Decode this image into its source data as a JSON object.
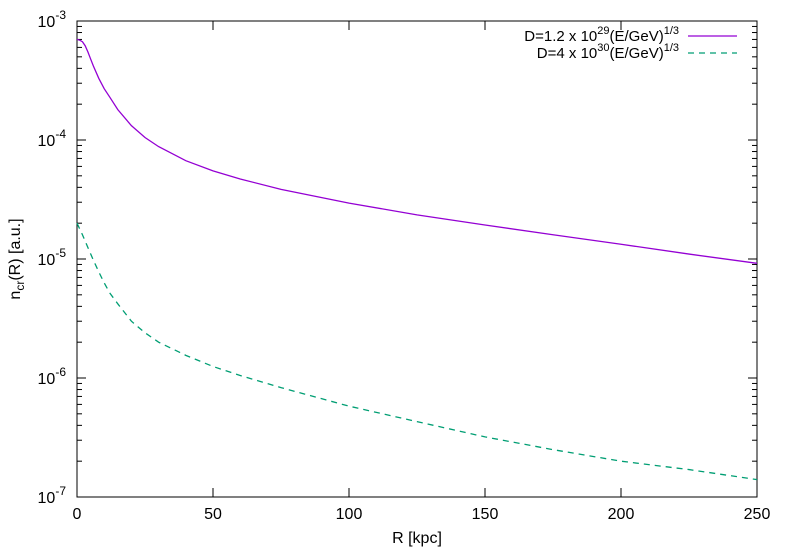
{
  "chart_data": {
    "type": "line",
    "xlabel": "R [kpc]",
    "ylabel": {
      "base": "n",
      "sub": "cr",
      "rest": "(R) [a.u.]"
    },
    "xlim": [
      0,
      250
    ],
    "ylim": [
      1e-07,
      0.001
    ],
    "yscale": "log",
    "grid": false,
    "legend_position": "top-right",
    "x_ticks": [
      0,
      50,
      100,
      150,
      200,
      250
    ],
    "x_tick_labels": [
      "0",
      "50",
      "100",
      "150",
      "200",
      "250"
    ],
    "y_ticks": [
      {
        "value": 1e-07,
        "base": "10",
        "exp": "-7"
      },
      {
        "value": 1e-06,
        "base": "10",
        "exp": "-6"
      },
      {
        "value": 1e-05,
        "base": "10",
        "exp": "-5"
      },
      {
        "value": 0.0001,
        "base": "10",
        "exp": "-4"
      },
      {
        "value": 0.001,
        "base": "10",
        "exp": "-3"
      }
    ],
    "series": [
      {
        "legend": {
          "pre": "D=1.2 x 10",
          "exp1": "29",
          "mid": "(E/GeV)",
          "exp2": "1/3"
        },
        "color": "#9400d3",
        "dash": "solid",
        "x": [
          0,
          1,
          2,
          3,
          4,
          5,
          6,
          8,
          10,
          12,
          15,
          20,
          25,
          30,
          40,
          50,
          60,
          75,
          100,
          125,
          150,
          175,
          200,
          225,
          250
        ],
        "y": [
          0.0007,
          0.00069,
          0.00067,
          0.00062,
          0.00055,
          0.00048,
          0.00042,
          0.00033,
          0.00027,
          0.00023,
          0.00018,
          0.000132,
          0.000105,
          8.8e-05,
          6.7e-05,
          5.5e-05,
          4.7e-05,
          3.85e-05,
          2.95e-05,
          2.35e-05,
          1.93e-05,
          1.6e-05,
          1.33e-05,
          1.1e-05,
          9.2e-06
        ]
      },
      {
        "legend": {
          "pre": "D=4 x 10",
          "exp1": "30",
          "mid": "(E/GeV)",
          "exp2": "1/3"
        },
        "color": "#009e73",
        "dash": "dashed",
        "x": [
          0,
          2,
          4,
          6,
          8,
          10,
          12,
          15,
          20,
          25,
          30,
          40,
          50,
          60,
          75,
          100,
          125,
          150,
          175,
          200,
          225,
          250
        ],
        "y": [
          2e-05,
          1.6e-05,
          1.25e-05,
          9.8e-06,
          7.8e-06,
          6.3e-06,
          5.2e-06,
          4.2e-06,
          3e-06,
          2.4e-06,
          2e-06,
          1.55e-06,
          1.25e-06,
          1.05e-06,
          8.3e-07,
          5.8e-07,
          4.3e-07,
          3.2e-07,
          2.5e-07,
          2e-07,
          1.7e-07,
          1.4e-07
        ]
      }
    ]
  }
}
